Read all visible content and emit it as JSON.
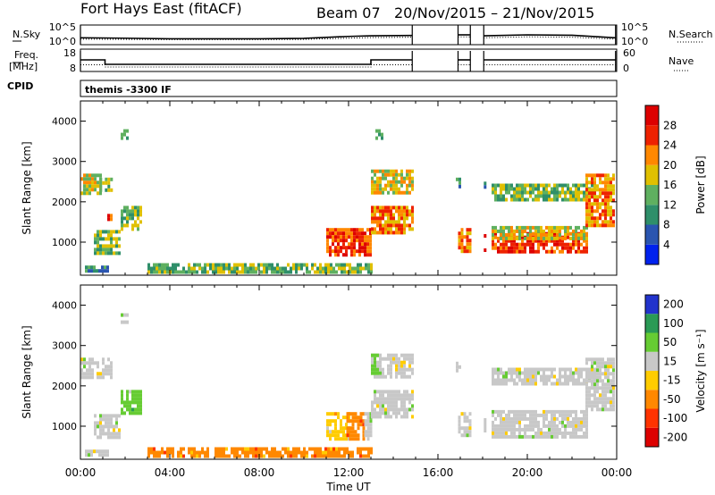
{
  "header": {
    "station": "Fort Hays East (fitACF)",
    "beam": "Beam 07",
    "date_range": "20/Nov/2015 – 21/Nov/2015"
  },
  "chart_data": [
    {
      "type": "line",
      "name": "noise-panel",
      "left_label": "N.Sky",
      "right_label": "N.Search",
      "left_ticks": [
        "10^5",
        "10^0"
      ],
      "right_ticks": [
        "10^5",
        "10^0"
      ],
      "coverage_hours": [
        [
          0.0,
          14.85
        ],
        [
          16.9,
          17.45
        ],
        [
          18.05,
          23.95
        ]
      ],
      "series": [
        {
          "style": "solid",
          "x": [
            0,
            2,
            4,
            6,
            8,
            10,
            12,
            13,
            14.85,
            16.9,
            17.45,
            18.05,
            20,
            22,
            23.95
          ],
          "y": [
            0.35,
            0.33,
            0.3,
            0.3,
            0.3,
            0.32,
            0.42,
            0.45,
            0.47,
            0.5,
            0.5,
            0.45,
            0.5,
            0.48,
            0.35
          ]
        },
        {
          "style": "dotted",
          "x": [
            0,
            2,
            4,
            6,
            8,
            10,
            12,
            13,
            14.85,
            16.9,
            17.45,
            18.05,
            20,
            22,
            23.95
          ],
          "y": [
            0.28,
            0.27,
            0.26,
            0.26,
            0.26,
            0.27,
            0.33,
            0.36,
            0.38,
            0.4,
            0.4,
            0.35,
            0.4,
            0.38,
            0.28
          ]
        }
      ]
    },
    {
      "type": "line",
      "name": "frequency-nave-panel",
      "left_label_top": "Freq.",
      "left_label_bottom": "[MHz]",
      "right_label": "Nave",
      "left_ticks": [
        "18",
        "8"
      ],
      "right_ticks": [
        "60",
        "0"
      ],
      "series": [
        {
          "style": "solid",
          "x": [
            0,
            1.1,
            1.1,
            13.0,
            13.0,
            14.85,
            16.9,
            17.45,
            18.05,
            23.95
          ],
          "y": [
            13.2,
            13.2,
            11.2,
            11.2,
            13.2,
            13.2,
            13.2,
            13.2,
            13.2,
            13.2
          ]
        },
        {
          "style": "dotted",
          "x": [
            0,
            1.1,
            1.1,
            13.0,
            13.0,
            14.85,
            16.9,
            17.45,
            18.05,
            23.95
          ],
          "y": [
            11.0,
            11.0,
            10.0,
            10.0,
            11.0,
            11.0,
            11.0,
            11.0,
            11.0,
            11.0
          ]
        }
      ]
    },
    {
      "type": "heatmap",
      "name": "power",
      "cpid_label": "CPID",
      "cpid_text": "themis -3300 IF",
      "xlabel": "Time UT",
      "ylabel": "Slant Range [km]",
      "colorbar_label": "Power [dB]",
      "xlim": [
        0,
        24
      ],
      "ylim": [
        180,
        4500
      ],
      "y_ticks": [
        1000,
        2000,
        3000,
        4000
      ],
      "colorbar_ticks": [
        "4",
        "8",
        "12",
        "16",
        "20",
        "24",
        "28"
      ],
      "regions": [
        {
          "t": [
            0.0,
            0.85
          ],
          "r": [
            2250,
            2700
          ],
          "level": 3.5
        },
        {
          "t": [
            0.85,
            1.4
          ],
          "r": [
            2300,
            2600
          ],
          "level": 2.5
        },
        {
          "t": [
            0.6,
            1.8
          ],
          "r": [
            750,
            1300
          ],
          "level": 2.5
        },
        {
          "t": [
            1.8,
            2.7
          ],
          "r": [
            1300,
            1900
          ],
          "level": 2.5
        },
        {
          "t": [
            1.2,
            1.4
          ],
          "r": [
            1550,
            1700
          ],
          "level": 5.5
        },
        {
          "t": [
            1.8,
            2.1
          ],
          "r": [
            3550,
            3800
          ],
          "level": 3.0
        },
        {
          "t": [
            0.2,
            1.2
          ],
          "r": [
            300,
            420
          ],
          "level": 2.0
        },
        {
          "t": [
            3.0,
            13.0
          ],
          "r": [
            250,
            480
          ],
          "level": 2.5
        },
        {
          "t": [
            11.0,
            13.0
          ],
          "r": [
            650,
            1350
          ],
          "level": 5.5
        },
        {
          "t": [
            13.0,
            14.85
          ],
          "r": [
            1200,
            1900
          ],
          "level": 5.0
        },
        {
          "t": [
            13.0,
            14.85
          ],
          "r": [
            2200,
            2800
          ],
          "level": 4.0
        },
        {
          "t": [
            13.2,
            13.5
          ],
          "r": [
            3600,
            3800
          ],
          "level": 2.5
        },
        {
          "t": [
            16.9,
            17.45
          ],
          "r": [
            800,
            1350
          ],
          "level": 5.0
        },
        {
          "t": [
            18.05,
            18.1
          ],
          "r": [
            800,
            1200
          ],
          "level": 5.5
        },
        {
          "t": [
            18.05,
            18.1
          ],
          "r": [
            2200,
            2500
          ],
          "level": 2.0
        },
        {
          "t": [
            18.4,
            22.6
          ],
          "r": [
            750,
            1250
          ],
          "level": 6.0
        },
        {
          "t": [
            18.4,
            22.6
          ],
          "r": [
            1050,
            1400
          ],
          "level": 3.5
        },
        {
          "t": [
            18.4,
            23.0
          ],
          "r": [
            2050,
            2450
          ],
          "level": 3.0
        },
        {
          "t": [
            22.6,
            23.9
          ],
          "r": [
            1400,
            2700
          ],
          "level": 4.5
        },
        {
          "t": [
            16.8,
            17.0
          ],
          "r": [
            2400,
            2600
          ],
          "level": 1.5
        }
      ]
    },
    {
      "type": "heatmap",
      "name": "velocity",
      "xlabel": "Time UT",
      "ylabel": "Slant Range [km]",
      "colorbar_label": "Velocity [m s⁻¹]",
      "xlim": [
        0,
        24
      ],
      "ylim": [
        180,
        4500
      ],
      "y_ticks": [
        1000,
        2000,
        3000,
        4000
      ],
      "x_ticks": [
        "00:00",
        "04:00",
        "08:00",
        "12:00",
        "16:00",
        "20:00",
        "00:00"
      ],
      "colorbar_ticks": [
        "200",
        "100",
        "50",
        "15",
        "-15",
        "-50",
        "-100",
        "-200"
      ],
      "regions": [
        {
          "t": [
            0.0,
            1.4
          ],
          "r": [
            2250,
            2700
          ],
          "level": 4
        },
        {
          "t": [
            0.6,
            1.8
          ],
          "r": [
            750,
            1300
          ],
          "level": 4
        },
        {
          "t": [
            1.8,
            2.7
          ],
          "r": [
            1300,
            1900
          ],
          "level": 5
        },
        {
          "t": [
            1.8,
            2.1
          ],
          "r": [
            3550,
            3800
          ],
          "level": 4
        },
        {
          "t": [
            0.2,
            1.2
          ],
          "r": [
            300,
            420
          ],
          "level": 4
        },
        {
          "t": [
            3.0,
            13.0
          ],
          "r": [
            250,
            480
          ],
          "level": 2
        },
        {
          "t": [
            11.0,
            12.0
          ],
          "r": [
            650,
            1350
          ],
          "level": 3
        },
        {
          "t": [
            11.9,
            12.7
          ],
          "r": [
            650,
            1350
          ],
          "level": 2
        },
        {
          "t": [
            12.7,
            13.0
          ],
          "r": [
            650,
            1350
          ],
          "level": 4
        },
        {
          "t": [
            13.0,
            14.85
          ],
          "r": [
            1200,
            1900
          ],
          "level": 4
        },
        {
          "t": [
            13.0,
            14.85
          ],
          "r": [
            2200,
            2800
          ],
          "level": 4
        },
        {
          "t": [
            13.0,
            13.3
          ],
          "r": [
            2300,
            2800
          ],
          "level": 5
        },
        {
          "t": [
            16.9,
            17.45
          ],
          "r": [
            800,
            1350
          ],
          "level": 4
        },
        {
          "t": [
            18.05,
            18.1
          ],
          "r": [
            800,
            1200
          ],
          "level": 4
        },
        {
          "t": [
            18.4,
            22.6
          ],
          "r": [
            750,
            1400
          ],
          "level": 4
        },
        {
          "t": [
            18.4,
            23.0
          ],
          "r": [
            2050,
            2450
          ],
          "level": 4
        },
        {
          "t": [
            22.6,
            23.9
          ],
          "r": [
            1400,
            2700
          ],
          "level": 4
        },
        {
          "t": [
            16.8,
            17.0
          ],
          "r": [
            2400,
            2600
          ],
          "level": 4
        }
      ]
    }
  ],
  "colors": {
    "power_scale": [
      "#0022ee",
      "#2a55b0",
      "#2f8f6a",
      "#5fb060",
      "#e0c000",
      "#ff8800",
      "#ee2200",
      "#dd0000"
    ],
    "velocity_scale": [
      "#dd0000",
      "#ff3300",
      "#ff8800",
      "#ffcc00",
      "#c8c8c8",
      "#66cc33",
      "#2a9a55",
      "#2233cc"
    ]
  }
}
